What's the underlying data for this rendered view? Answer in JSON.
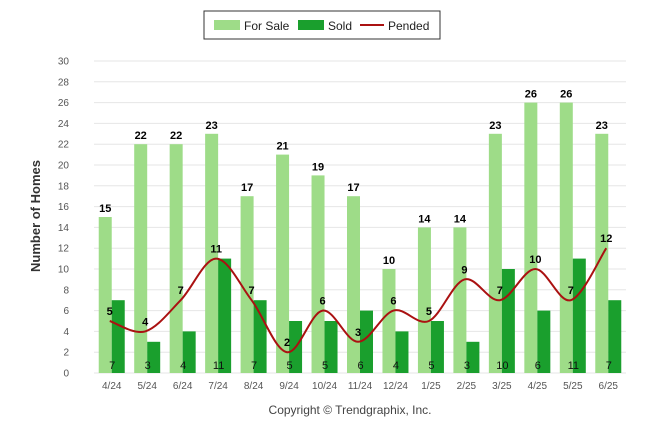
{
  "chart_data": {
    "type": "bar",
    "categories": [
      "4/24",
      "5/24",
      "6/24",
      "7/24",
      "8/24",
      "9/24",
      "10/24",
      "11/24",
      "12/24",
      "1/25",
      "2/25",
      "3/25",
      "4/25",
      "5/25",
      "6/25"
    ],
    "series": [
      {
        "name": "For Sale",
        "kind": "bar",
        "color": "#9edc88",
        "values": [
          15,
          22,
          22,
          23,
          17,
          21,
          19,
          17,
          10,
          14,
          14,
          23,
          26,
          26,
          23
        ]
      },
      {
        "name": "Sold",
        "kind": "bar",
        "color": "#1a9f2d",
        "values": [
          7,
          3,
          4,
          11,
          7,
          5,
          5,
          6,
          4,
          5,
          3,
          10,
          6,
          11,
          7
        ]
      },
      {
        "name": "Pended",
        "kind": "line",
        "color": "#aa1111",
        "values": [
          5,
          4,
          7,
          11,
          7,
          2,
          6,
          3,
          6,
          5,
          9,
          7,
          10,
          7,
          12
        ]
      }
    ],
    "ylabel": "Number of Homes",
    "xlabel": "",
    "ylim": [
      0,
      30
    ],
    "yticks": [
      0,
      2,
      4,
      6,
      8,
      10,
      12,
      14,
      16,
      18,
      20,
      22,
      24,
      26,
      28,
      30
    ],
    "grid": true,
    "legend_position": "top-center"
  },
  "footer": {
    "copyright": "Copyright © Trendgraphix, Inc."
  }
}
